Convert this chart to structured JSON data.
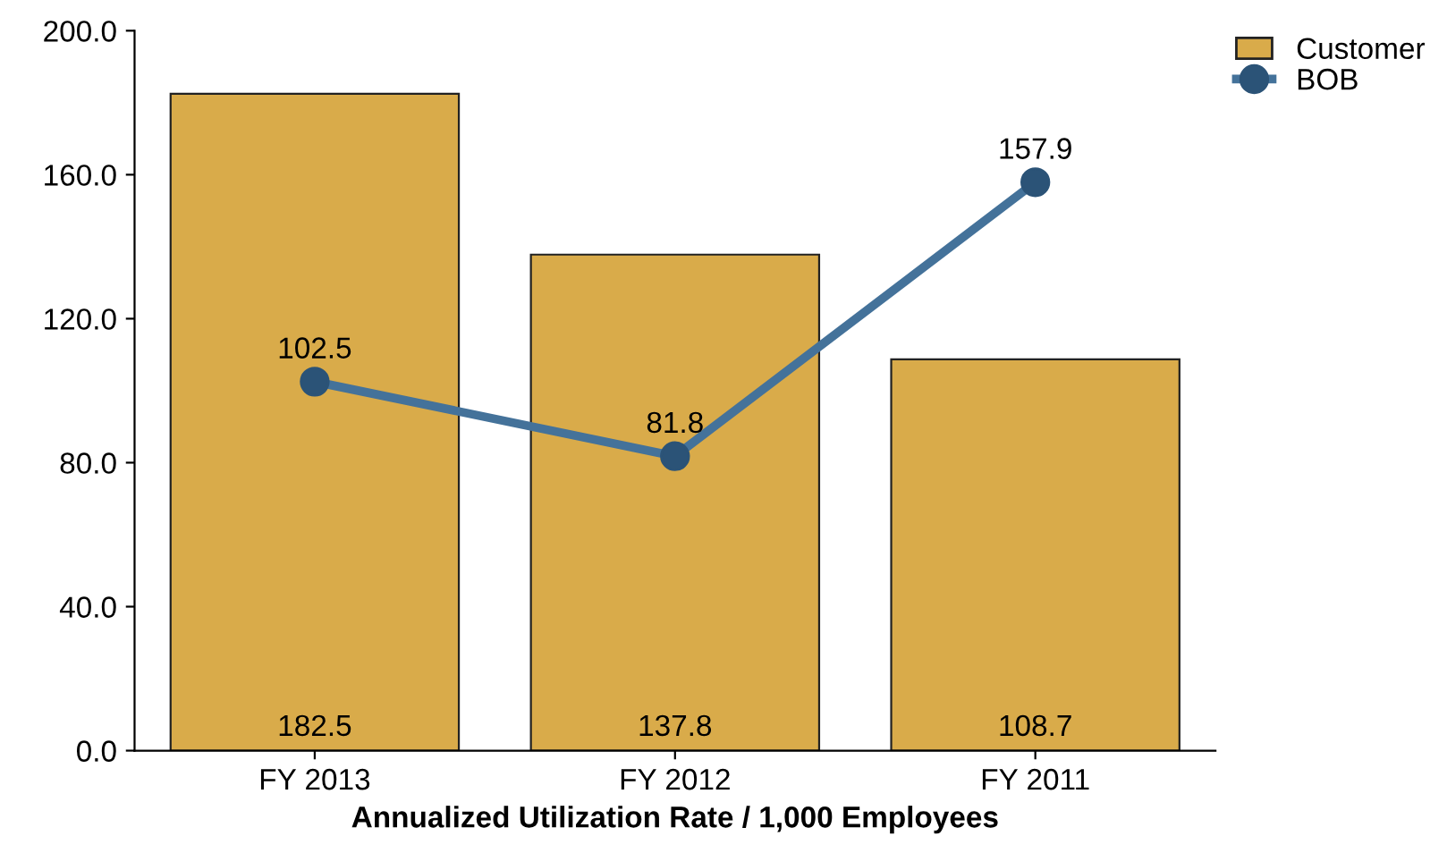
{
  "chart_data": {
    "type": "bar",
    "xlabel": "Annualized Utilization Rate / 1,000 Employees",
    "categories": [
      "FY 2013",
      "FY 2012",
      "FY 2011"
    ],
    "series": [
      {
        "name": "Customer",
        "color": "#d9ab4a",
        "values": [
          182.5,
          137.8,
          108.7
        ]
      },
      {
        "name": "BOB",
        "type": "line",
        "color": "#44729a",
        "values": [
          102.5,
          81.8,
          157.9
        ]
      }
    ],
    "ylim": [
      0,
      200
    ],
    "yticks": [
      {
        "value": 0,
        "label": "0.0"
      },
      {
        "value": 40,
        "label": "40.0"
      },
      {
        "value": 80,
        "label": "80.0"
      },
      {
        "value": 120,
        "label": "120.0"
      },
      {
        "value": 160,
        "label": "160.0"
      },
      {
        "value": 200,
        "label": "200.0"
      }
    ],
    "data_labels": true,
    "marker": "circle",
    "grid": false,
    "legend": "top right"
  }
}
